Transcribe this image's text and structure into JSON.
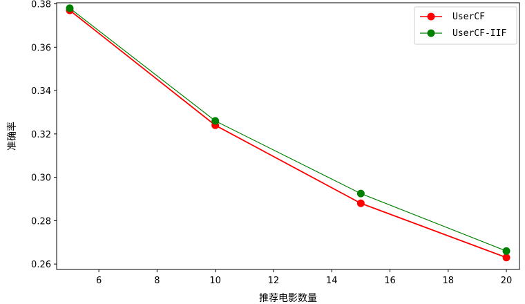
{
  "chart_data": {
    "type": "line",
    "title": "",
    "xlabel": "推荐电影数量",
    "ylabel": "准确率",
    "x": [
      5,
      10,
      15,
      20
    ],
    "xlim": [
      4.55,
      20.45
    ],
    "ylim": [
      0.2575,
      0.3805
    ],
    "xticks": [
      6,
      8,
      10,
      12,
      14,
      16,
      18,
      20
    ],
    "yticks": [
      0.26,
      0.28,
      0.3,
      0.32,
      0.34,
      0.36,
      0.38
    ],
    "xtick_labels": [
      "6",
      "8",
      "10",
      "12",
      "14",
      "16",
      "18",
      "20"
    ],
    "ytick_labels": [
      "0.26",
      "0.28",
      "0.30",
      "0.32",
      "0.34",
      "0.36",
      "0.38"
    ],
    "grid": false,
    "legend": "top-right",
    "series": [
      {
        "name": "UserCF",
        "values": [
          0.377,
          0.324,
          0.288,
          0.263
        ],
        "color": "#ff0000",
        "marker": "circle"
      },
      {
        "name": "UserCF-IIF",
        "values": [
          0.378,
          0.326,
          0.2925,
          0.266
        ],
        "color": "#008000",
        "marker": "circle"
      }
    ]
  }
}
